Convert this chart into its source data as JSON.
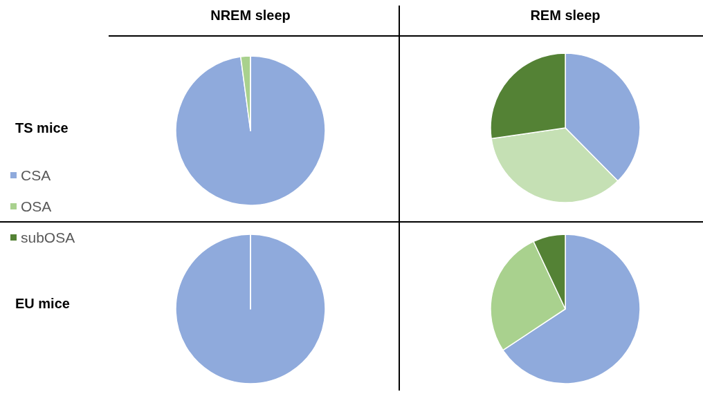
{
  "chart_data": {
    "type": "pie",
    "categories": [
      "CSA",
      "OSA",
      "subOSA"
    ],
    "legend": "left",
    "annotations": [
      "NREM sleep",
      "REM sleep",
      "TS mice",
      "EU mice"
    ],
    "series": [
      {
        "values": [
          97.9,
          2.1,
          0
        ],
        "colors": [
          "#8faadc",
          "#a9d18e",
          "#548235"
        ]
      },
      {
        "values": [
          37.6,
          35.1,
          27.3
        ],
        "colors": [
          "#8faadc",
          "#c5e0b4",
          "#548235"
        ]
      },
      {
        "values": [
          100,
          0,
          0
        ],
        "colors": [
          "#8faadc",
          "#a9d18e",
          "#548235"
        ]
      },
      {
        "values": [
          65.7,
          27.3,
          7.0
        ],
        "colors": [
          "#8faadc",
          "#a9d18e",
          "#548235"
        ]
      }
    ]
  }
}
